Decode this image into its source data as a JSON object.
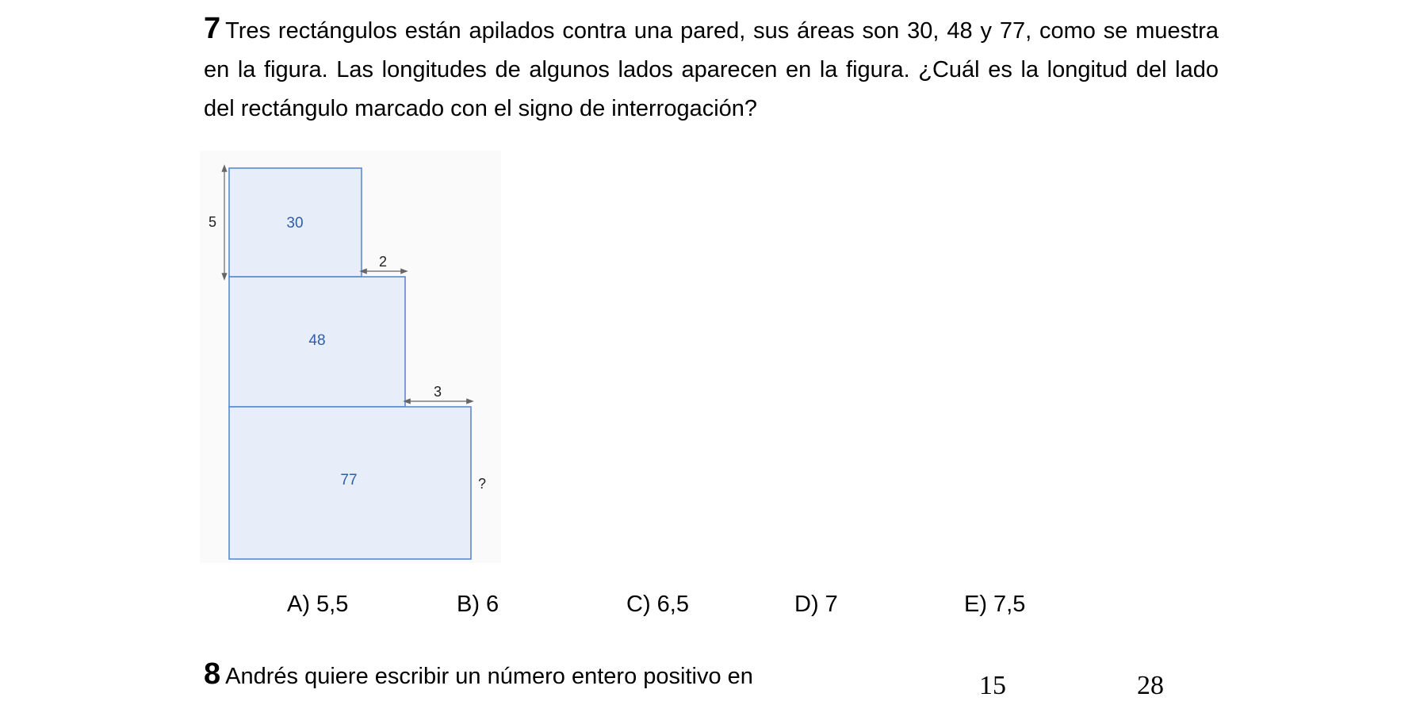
{
  "problem7": {
    "number": "7",
    "text": "Tres rectángulos están apilados contra una pared, sus áreas son 30, 48 y 77, como se muestra en la figura. Las longitudes de algunos lados aparecen en la figura. ¿Cuál es la longitud del lado del rectángulo marcado con el signo de interrogación?"
  },
  "figure": {
    "labels": {
      "left_side": "5",
      "top_area": "30",
      "step1": "2",
      "middle_area": "48",
      "step2": "3",
      "bottom_area": "77",
      "unknown": "?"
    },
    "colors": {
      "fill": "#e8eef9",
      "stroke": "#5b8bd0",
      "text": "#2f5ea8",
      "arrow": "#666666"
    }
  },
  "answers": [
    "A) 5,5",
    "B) 6",
    "C) 6,5",
    "D) 7",
    "E) 7,5"
  ],
  "problem8": {
    "number": "8",
    "text": "Andrés quiere escribir un número entero positivo en"
  },
  "cutoff_glyphs": [
    "15",
    "28"
  ]
}
